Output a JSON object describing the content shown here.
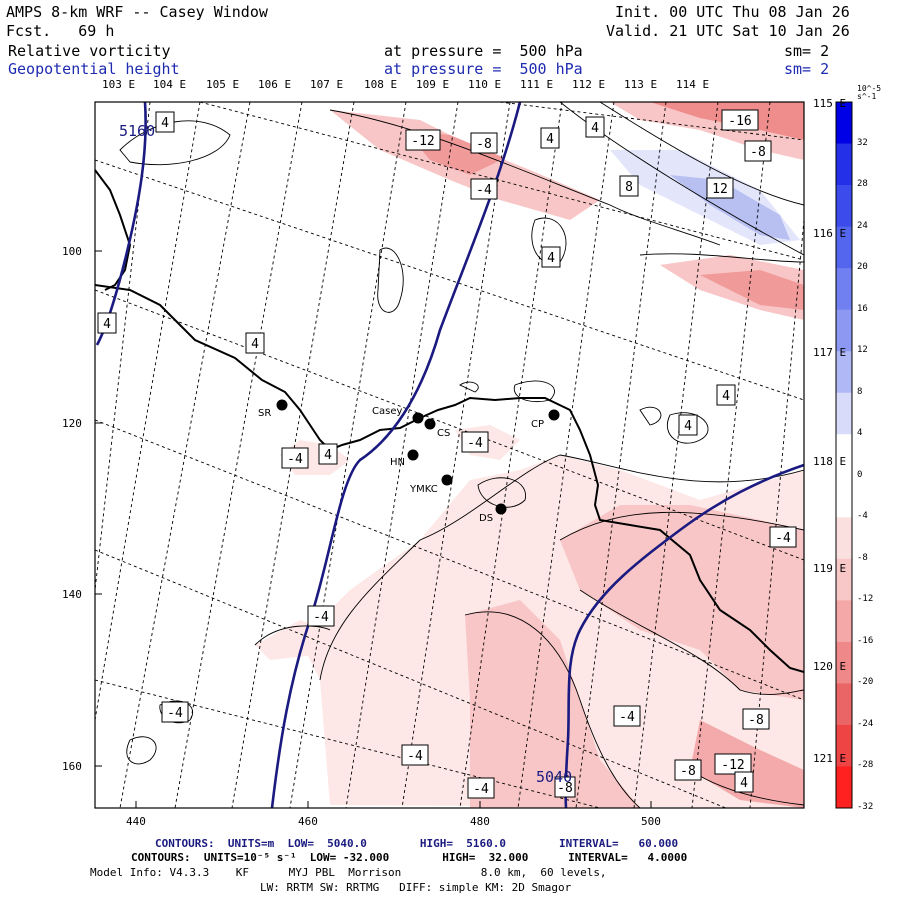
{
  "header": {
    "title": "AMPS 8-km WRF -- Casey Window",
    "forecast": "Fcst.   69 h",
    "init": "Init. 00 UTC Thu 08 Jan 26",
    "valid": "Valid. 21 UTC Sat 10 Jan 26",
    "field1": {
      "name": "Relative vorticity",
      "level": "at pressure =  500 hPa",
      "smooth": "sm= 2"
    },
    "field2": {
      "name": "Geopotential height",
      "level": "at pressure =  500 hPa",
      "smooth": "sm= 2"
    }
  },
  "axes": {
    "top_lon": [
      "103 E",
      "104 E",
      "105 E",
      "106 E",
      "107 E",
      "108 E",
      "109 E",
      "110 E",
      "111 E",
      "112 E",
      "113 E",
      "114 E"
    ],
    "right_lon": [
      "115 E",
      "116 E",
      "117 E",
      "118 E",
      "119 E",
      "120 E",
      "121 E"
    ],
    "x_ticks": [
      "440",
      "460",
      "480",
      "500"
    ],
    "y_ticks": [
      "100",
      "120",
      "140",
      "160"
    ]
  },
  "stations": [
    {
      "id": "SR",
      "label": "SR"
    },
    {
      "id": "Casey",
      "label": "Casey"
    },
    {
      "id": "CS",
      "label": "CS"
    },
    {
      "id": "HN",
      "label": "HN"
    },
    {
      "id": "YMKC",
      "label": "YMKC"
    },
    {
      "id": "DS",
      "label": "DS"
    },
    {
      "id": "CP",
      "label": "CP"
    }
  ],
  "contour_labels": {
    "vort": [
      "4",
      "-12",
      "-8",
      "4",
      "4",
      "-16",
      "-8",
      "-4",
      "8",
      "12",
      "4",
      "4",
      "4",
      "4",
      "4",
      "-4",
      "4",
      "-4",
      "-4",
      "-4",
      "-4",
      "-4",
      "-4",
      "-8",
      "-4",
      "-8",
      "-12",
      "-8",
      "4"
    ],
    "height": [
      "5160",
      "5040"
    ]
  },
  "colorbar": {
    "units": "10^-5 s^-1",
    "labels": [
      "32",
      "28",
      "24",
      "20",
      "16",
      "12",
      "8",
      "4",
      "0",
      "-4",
      "-8",
      "-12",
      "-16",
      "-20",
      "-24",
      "-28",
      "-32"
    ],
    "colors": [
      "#0000e6",
      "#2430e8",
      "#3c4cec",
      "#5566ee",
      "#7080f0",
      "#8c98f2",
      "#b0b8f6",
      "#d8dcfa",
      "#ffffff",
      "#ffffff",
      "#fbe0e0",
      "#f8c8c8",
      "#f4a8a8",
      "#ef8888",
      "#ea6666",
      "#ee4444",
      "#ff2020"
    ]
  },
  "footer": {
    "line1": "CONTOURS:  UNITS=m  LOW=  5040.0        HIGH=  5160.0        INTERVAL=   60.000",
    "line2": "CONTOURS:  UNITS=10⁻⁵ s⁻¹  LOW= -32.000        HIGH=  32.000      INTERVAL=   4.0000",
    "line3": "Model Info: V4.3.3    KF      MYJ PBL  Morrison            8.0 km,  60 levels,",
    "line4": "LW: RRTM SW: RRTMG   DIFF: simple KM: 2D Smagor"
  }
}
